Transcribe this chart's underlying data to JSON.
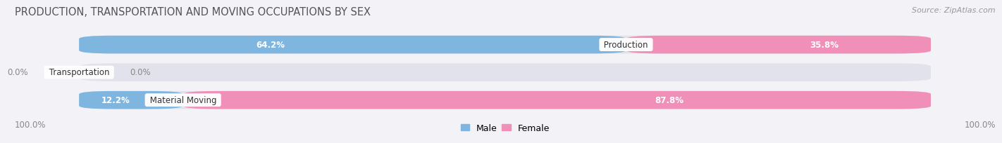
{
  "title": "PRODUCTION, TRANSPORTATION AND MOVING OCCUPATIONS BY SEX",
  "source": "Source: ZipAtlas.com",
  "categories": [
    "Production",
    "Transportation",
    "Material Moving"
  ],
  "male_pct": [
    64.2,
    0.0,
    12.2
  ],
  "female_pct": [
    35.8,
    0.0,
    87.8
  ],
  "male_color": "#7eb6df",
  "female_color": "#f090b8",
  "bg_color": "#f2f2f7",
  "bar_bg_color": "#e2e2ec",
  "title_fontsize": 10.5,
  "source_fontsize": 8,
  "axis_label_fontsize": 8.5,
  "bar_label_fontsize": 8.5,
  "cat_label_fontsize": 8.5,
  "legend_fontsize": 9,
  "axis_left_label": "100.0%",
  "axis_right_label": "100.0%"
}
